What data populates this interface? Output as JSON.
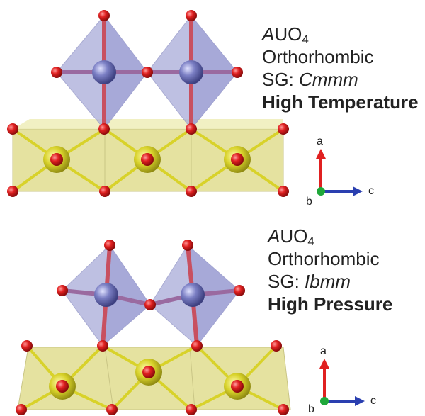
{
  "panels": [
    {
      "id": "top",
      "formula": {
        "italic_part": "A",
        "rest": "UO",
        "subscript": "4"
      },
      "crystal_system": "Orthorhombic",
      "space_group": {
        "prefix": "SG: ",
        "symbol": "Cmmm"
      },
      "condition": "High Temperature",
      "axes": {
        "up": "a",
        "origin": "b",
        "right": "c"
      }
    },
    {
      "id": "bottom",
      "formula": {
        "italic_part": "A",
        "rest": "UO",
        "subscript": "4"
      },
      "crystal_system": "Orthorhombic",
      "space_group": {
        "prefix": "SG: ",
        "symbol": "Ibmm"
      },
      "condition": "High Pressure",
      "axes": {
        "up": "a",
        "origin": "b",
        "right": "c"
      }
    }
  ],
  "colors": {
    "oxygen": "#e02020",
    "uranium_center": "#7b7fc4",
    "uranium_polyhedron": "#a9acd9",
    "a_site_center": "#d8d22a",
    "a_site_layer": "#e5e2a0",
    "axis_a": "#e02020",
    "axis_b": "#1fa83a",
    "axis_c": "#2a3fb0"
  }
}
